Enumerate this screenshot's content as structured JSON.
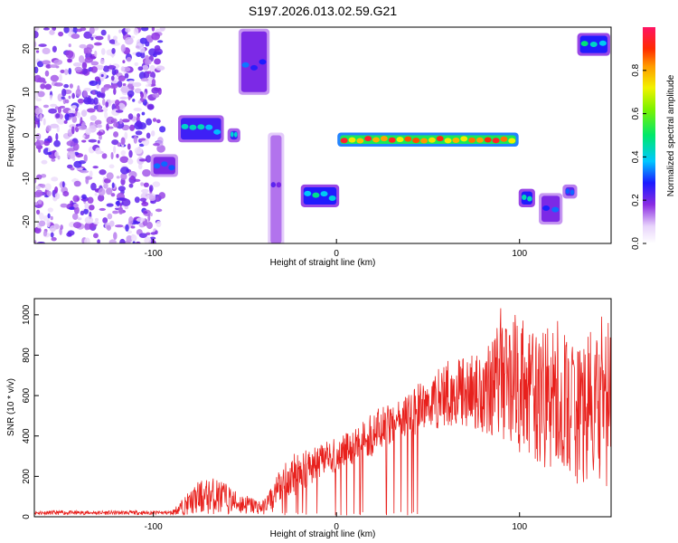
{
  "title": "S197.2026.013.02.59.G21",
  "colors": {
    "snr_line": "#e8201c",
    "frame": "#000000"
  },
  "chart_data": [
    {
      "type": "heatmap",
      "xlabel": "Height of straight line (km)",
      "ylabel": "Frequency (Hz)",
      "xlim": [
        -165,
        150
      ],
      "ylim": [
        -25,
        25
      ],
      "xticks": [
        -100,
        0,
        100
      ],
      "yticks": [
        -20,
        -10,
        0,
        10,
        20
      ],
      "colorbar": {
        "label": "Normalized spectral amplitude",
        "ticks": [
          0.0,
          0.2,
          0.4,
          0.6,
          0.8
        ],
        "tick_labels": [
          "0.0",
          "0.2",
          "0.4",
          "0.6",
          "0.8"
        ],
        "range": [
          0,
          1
        ]
      },
      "features": [
        {
          "x": [
            -165,
            -95
          ],
          "freq": [
            -25,
            25
          ],
          "amplitude": 0.15,
          "kind": "noise"
        },
        {
          "x": [
            -100,
            -88
          ],
          "freq": [
            -9,
            -5
          ],
          "amplitude": 0.35,
          "kind": "track"
        },
        {
          "x": [
            -85,
            -63
          ],
          "freq": [
            -1,
            4
          ],
          "amplitude": 0.45,
          "kind": "track"
        },
        {
          "x": [
            -58,
            -54
          ],
          "freq": [
            -1,
            1
          ],
          "amplitude": 0.45,
          "kind": "track"
        },
        {
          "x": [
            -52,
            -38
          ],
          "freq": [
            10,
            24
          ],
          "amplitude": 0.35,
          "kind": "track"
        },
        {
          "x": [
            -36,
            -30
          ],
          "freq": [
            -25,
            0
          ],
          "amplitude": 0.25,
          "kind": "track"
        },
        {
          "x": [
            -18,
            0
          ],
          "freq": [
            -16,
            -12
          ],
          "amplitude": 0.5,
          "kind": "track"
        },
        {
          "x": [
            2,
            98
          ],
          "freq": [
            -2,
            0
          ],
          "amplitude": 0.95,
          "kind": "track"
        },
        {
          "x": [
            101,
            107
          ],
          "freq": [
            -16,
            -13
          ],
          "amplitude": 0.5,
          "kind": "track"
        },
        {
          "x": [
            112,
            122
          ],
          "freq": [
            -20,
            -14
          ],
          "amplitude": 0.35,
          "kind": "track"
        },
        {
          "x": [
            125,
            130
          ],
          "freq": [
            -14,
            -12
          ],
          "amplitude": 0.4,
          "kind": "track"
        },
        {
          "x": [
            133,
            148
          ],
          "freq": [
            19,
            23
          ],
          "amplitude": 0.5,
          "kind": "track"
        }
      ]
    },
    {
      "type": "line",
      "xlabel": "Height of straight line (km)",
      "ylabel": "SNR (10 * v/v)",
      "xlim": [
        -165,
        150
      ],
      "ylim": [
        0,
        1080
      ],
      "xticks": [
        -100,
        0,
        100
      ],
      "yticks": [
        0,
        200,
        400,
        600,
        800,
        1000
      ],
      "envelope": {
        "x": [
          -165,
          -90,
          -75,
          -65,
          -55,
          -40,
          -30,
          -20,
          -10,
          0,
          10,
          20,
          30,
          40,
          50,
          60,
          70,
          80,
          90,
          100,
          110,
          120,
          130,
          140,
          150
        ],
        "low": [
          10,
          10,
          10,
          10,
          10,
          10,
          60,
          120,
          180,
          220,
          260,
          300,
          350,
          400,
          420,
          440,
          440,
          420,
          380,
          320,
          260,
          200,
          150,
          120,
          100
        ],
        "high": [
          30,
          30,
          180,
          200,
          130,
          80,
          250,
          350,
          350,
          400,
          450,
          530,
          560,
          620,
          700,
          780,
          800,
          820,
          1050,
          1000,
          900,
          980,
          880,
          920,
          1070
        ]
      }
    }
  ]
}
